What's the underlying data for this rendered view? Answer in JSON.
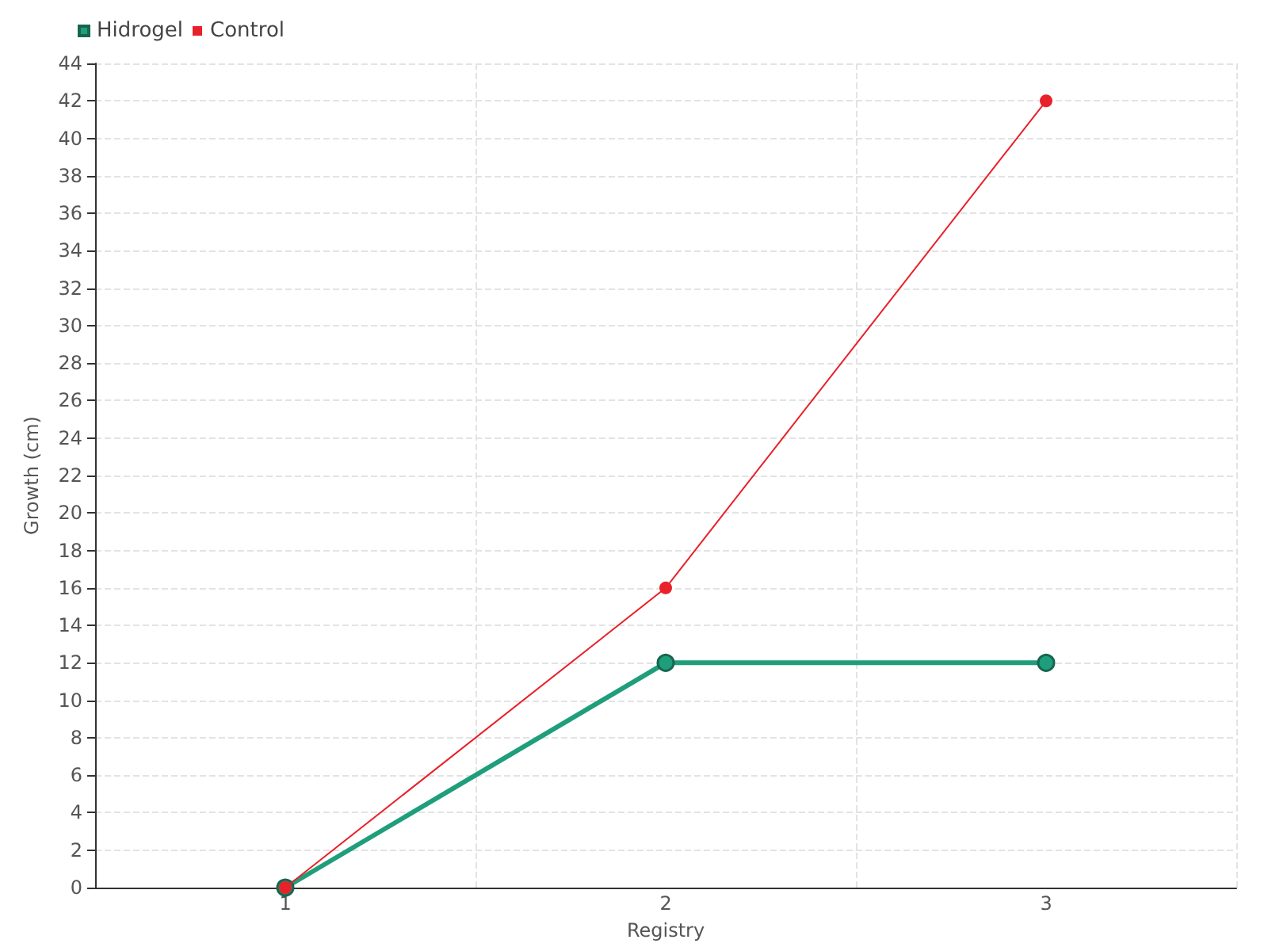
{
  "chart_data": {
    "type": "line",
    "xlabel": "Registry",
    "ylabel": "Growth (cm)",
    "categories": [
      "1",
      "2",
      "3"
    ],
    "series": [
      {
        "name": "Hidrogel",
        "color": "#1f9e7c",
        "values": [
          0,
          12,
          12
        ]
      },
      {
        "name": "Control",
        "color": "#e8212b",
        "values": [
          0,
          16,
          42
        ]
      }
    ],
    "ylim": [
      0,
      44
    ],
    "yticks": [
      0,
      2,
      4,
      6,
      8,
      10,
      12,
      14,
      16,
      18,
      20,
      22,
      24,
      26,
      28,
      30,
      32,
      34,
      36,
      38,
      40,
      42,
      44
    ],
    "grid": true,
    "legend": "top left",
    "marker": "circle",
    "line_style": "solid"
  }
}
